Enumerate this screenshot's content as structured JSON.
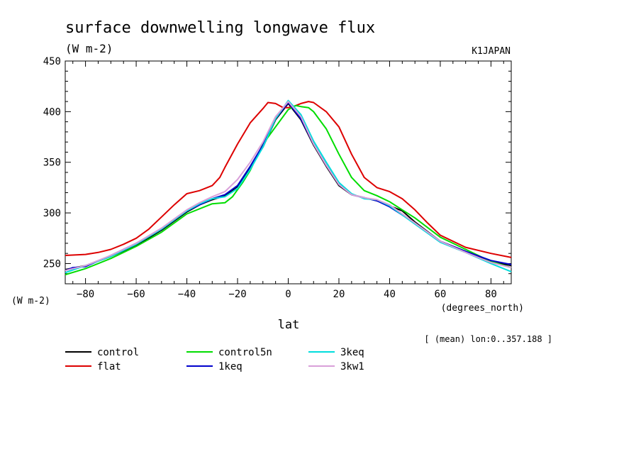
{
  "chart_data": {
    "type": "line",
    "title": "surface downwelling longwave flux",
    "subtitle": "(W m-2)",
    "source_label": "K1JAPAN",
    "ylabel": "(W m-2)",
    "xlabel": "lat",
    "xunit": "(degrees_north)",
    "footnote": "[ (mean) lon:0..357.188 ]",
    "xlim": [
      -88,
      88
    ],
    "ylim": [
      230,
      450
    ],
    "xticks": [
      -80,
      -60,
      -40,
      -20,
      0,
      20,
      40,
      60,
      80
    ],
    "yticks": [
      250,
      300,
      350,
      400,
      450
    ],
    "grid": false,
    "legend_position": "bottom-left",
    "series": [
      {
        "name": "control",
        "color": "#000000",
        "x": [
          -88,
          -80,
          -70,
          -60,
          -50,
          -40,
          -35,
          -30,
          -25,
          -20,
          -15,
          -10,
          -5,
          0,
          5,
          10,
          15,
          20,
          25,
          30,
          35,
          40,
          45,
          50,
          60,
          70,
          80,
          88
        ],
        "y": [
          244,
          248,
          257,
          268,
          283,
          301,
          308,
          313,
          317,
          326,
          345,
          365,
          392,
          408,
          392,
          367,
          346,
          327,
          318,
          315,
          312,
          307,
          302,
          291,
          272,
          262,
          252,
          248
        ]
      },
      {
        "name": "flat",
        "color": "#dd0000",
        "x": [
          -88,
          -80,
          -75,
          -70,
          -65,
          -60,
          -55,
          -50,
          -45,
          -40,
          -35,
          -30,
          -27,
          -25,
          -20,
          -15,
          -10,
          -8,
          -5,
          -2,
          0,
          2,
          5,
          8,
          10,
          15,
          20,
          25,
          30,
          35,
          40,
          45,
          50,
          55,
          60,
          70,
          80,
          88
        ],
        "y": [
          258,
          259,
          261,
          264,
          269,
          275,
          284,
          296,
          308,
          319,
          322,
          327,
          335,
          345,
          368,
          389,
          403,
          409,
          408,
          404,
          404,
          405,
          408,
          410,
          409,
          400,
          385,
          358,
          335,
          325,
          321,
          314,
          303,
          290,
          278,
          266,
          260,
          256
        ]
      },
      {
        "name": "control5n",
        "color": "#00dd00",
        "x": [
          -88,
          -80,
          -70,
          -60,
          -50,
          -40,
          -30,
          -25,
          -22,
          -18,
          -15,
          -10,
          -5,
          0,
          3,
          5,
          8,
          10,
          15,
          20,
          25,
          30,
          35,
          40,
          45,
          50,
          60,
          70,
          80,
          88
        ],
        "y": [
          239,
          245,
          255,
          267,
          281,
          299,
          309,
          310,
          316,
          330,
          342,
          368,
          385,
          402,
          406,
          405,
          404,
          400,
          383,
          358,
          335,
          322,
          317,
          311,
          303,
          295,
          276,
          264,
          252,
          246
        ]
      },
      {
        "name": "1keq",
        "color": "#0000cc",
        "x": [
          -88,
          -85,
          -80,
          -70,
          -60,
          -50,
          -40,
          -35,
          -30,
          -25,
          -20,
          -15,
          -10,
          -5,
          0,
          5,
          10,
          15,
          20,
          25,
          30,
          35,
          40,
          50,
          60,
          70,
          80,
          88
        ],
        "y": [
          243,
          246,
          247,
          258,
          270,
          284,
          302,
          308,
          314,
          318,
          327,
          346,
          367,
          393,
          409,
          393,
          368,
          347,
          328,
          318,
          315,
          312,
          306,
          290,
          272,
          262,
          253,
          249
        ]
      },
      {
        "name": "3keq",
        "color": "#00dddd",
        "x": [
          -88,
          -80,
          -70,
          -60,
          -50,
          -40,
          -35,
          -30,
          -25,
          -20,
          -15,
          -10,
          -5,
          0,
          5,
          10,
          15,
          20,
          25,
          30,
          35,
          40,
          50,
          60,
          70,
          80,
          88
        ],
        "y": [
          241,
          248,
          257,
          269,
          284,
          302,
          309,
          314,
          316,
          324,
          343,
          365,
          393,
          411,
          397,
          371,
          350,
          330,
          319,
          314,
          313,
          307,
          289,
          271,
          261,
          250,
          242
        ]
      },
      {
        "name": "3kw1",
        "color": "#d9a0d9",
        "x": [
          -88,
          -80,
          -70,
          -60,
          -50,
          -40,
          -35,
          -30,
          -25,
          -20,
          -15,
          -10,
          -5,
          0,
          5,
          10,
          15,
          20,
          25,
          30,
          35,
          40,
          50,
          60,
          70,
          80,
          88
        ],
        "y": [
          243,
          248,
          258,
          270,
          285,
          303,
          310,
          316,
          321,
          333,
          350,
          370,
          395,
          410,
          395,
          368,
          347,
          328,
          318,
          315,
          313,
          308,
          290,
          272,
          261,
          251,
          246
        ]
      }
    ]
  }
}
